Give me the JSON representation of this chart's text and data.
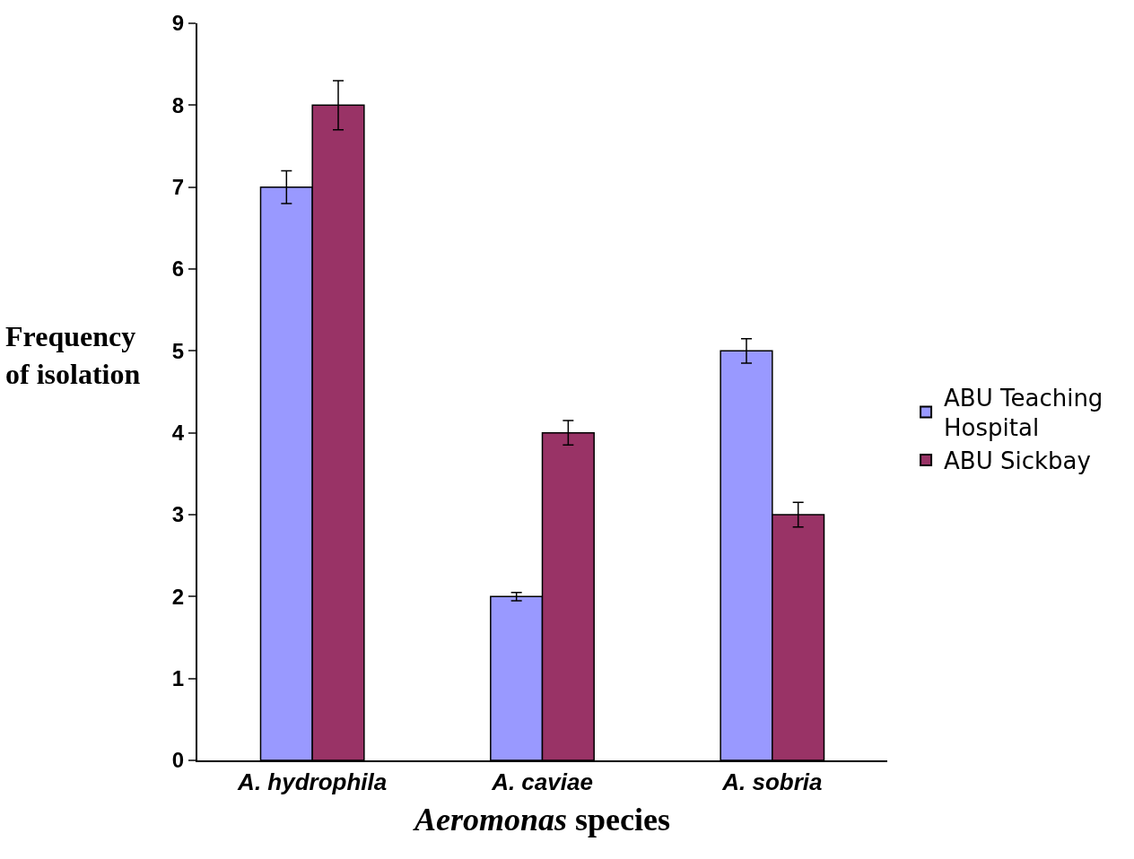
{
  "chart_data": {
    "type": "bar",
    "categories": [
      "A. hydrophila",
      "A. caviae",
      "A. sobria"
    ],
    "series": [
      {
        "name": "ABU Teaching Hospital",
        "color": "#9999ff",
        "values": [
          7,
          2,
          5
        ],
        "errors": [
          0.2,
          0.05,
          0.15
        ]
      },
      {
        "name": "ABU Sickbay",
        "color": "#993366",
        "values": [
          8,
          4,
          3
        ],
        "errors": [
          0.3,
          0.15,
          0.15
        ]
      }
    ],
    "xlabel": "Aeromonas species",
    "ylabel": "Frequency\nof isolation",
    "ylim": [
      0,
      9
    ],
    "yticks": [
      0,
      1,
      2,
      3,
      4,
      5,
      6,
      7,
      8,
      9
    ],
    "legend": "right"
  }
}
